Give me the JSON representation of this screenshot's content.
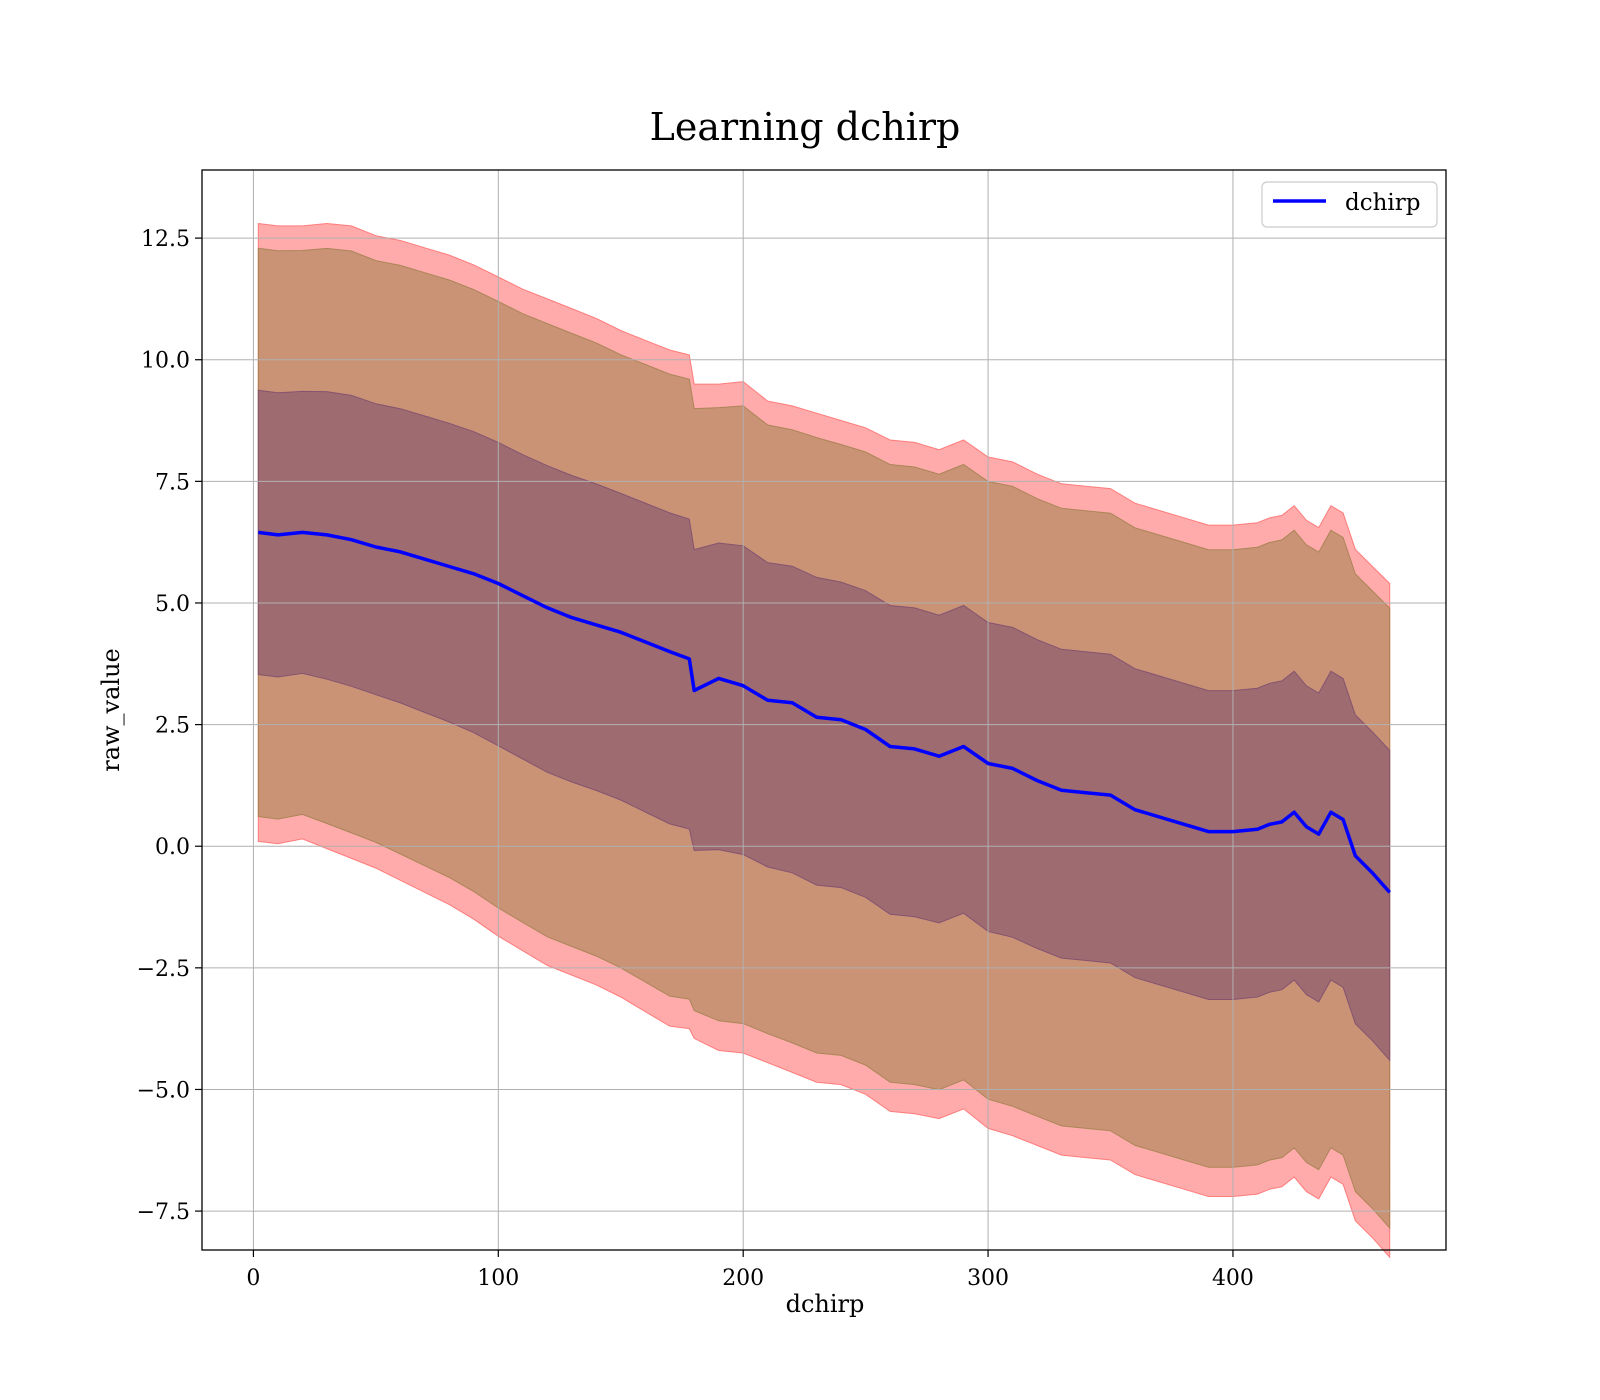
{
  "chart_data": {
    "type": "line",
    "title": "Learning dchirp",
    "xlabel": "dchirp",
    "ylabel": "raw_value",
    "xlim": [
      -21,
      487
    ],
    "ylim": [
      -8.3,
      13.9
    ],
    "xticks": [
      0,
      100,
      200,
      300,
      400
    ],
    "xtick_labels": [
      "0",
      "100",
      "200",
      "300",
      "400"
    ],
    "yticks": [
      -7.5,
      -5.0,
      -2.5,
      0.0,
      2.5,
      5.0,
      7.5,
      10.0,
      12.5
    ],
    "ytick_labels": [
      "−7.5",
      "−5.0",
      "−2.5",
      "0.0",
      "2.5",
      "5.0",
      "7.5",
      "10.0",
      "12.5"
    ],
    "grid": true,
    "legend_position": "top-right",
    "legend": [
      "dchirp"
    ],
    "colors": {
      "line": "#0000ff",
      "band_outer": "#ff6666",
      "band_middle": "#9e7f4a",
      "band_inner": "#7a4a6e",
      "grid": "#b0b0b0"
    },
    "x": [
      2,
      10,
      20,
      30,
      40,
      50,
      60,
      70,
      80,
      90,
      100,
      110,
      120,
      130,
      140,
      150,
      160,
      170,
      178,
      180,
      190,
      200,
      210,
      220,
      230,
      240,
      250,
      260,
      270,
      280,
      290,
      300,
      310,
      320,
      330,
      340,
      350,
      360,
      370,
      380,
      390,
      400,
      410,
      415,
      420,
      425,
      430,
      435,
      440,
      445,
      450,
      457,
      464
    ],
    "series": [
      {
        "name": "dchirp",
        "values": [
          6.45,
          6.4,
          6.45,
          6.4,
          6.3,
          6.15,
          6.05,
          5.9,
          5.75,
          5.6,
          5.4,
          5.15,
          4.9,
          4.7,
          4.55,
          4.4,
          4.2,
          4.0,
          3.85,
          3.2,
          3.45,
          3.3,
          3.0,
          2.95,
          2.65,
          2.6,
          2.4,
          2.05,
          2.0,
          1.85,
          2.05,
          1.7,
          1.6,
          1.35,
          1.15,
          1.1,
          1.05,
          0.75,
          0.6,
          0.45,
          0.3,
          0.3,
          0.35,
          0.45,
          0.5,
          0.7,
          0.4,
          0.25,
          0.7,
          0.55,
          -0.2,
          -0.55,
          -0.95
        ]
      }
    ],
    "bands": [
      {
        "name": "outer",
        "lower": [
          0.1,
          0.05,
          0.15,
          -0.05,
          -0.25,
          -0.45,
          -0.7,
          -0.95,
          -1.2,
          -1.5,
          -1.85,
          -2.15,
          -2.45,
          -2.65,
          -2.85,
          -3.1,
          -3.4,
          -3.7,
          -3.75,
          -3.95,
          -4.2,
          -4.25,
          -4.45,
          -4.65,
          -4.85,
          -4.9,
          -5.1,
          -5.45,
          -5.5,
          -5.6,
          -5.4,
          -5.8,
          -5.95,
          -6.15,
          -6.35,
          -6.4,
          -6.45,
          -6.75,
          -6.9,
          -7.05,
          -7.2,
          -7.2,
          -7.15,
          -7.05,
          -7.0,
          -6.8,
          -7.1,
          -7.25,
          -6.8,
          -6.95,
          -7.7,
          -8.05,
          -8.45
        ]
      },
      {
        "name": "outer",
        "upper": [
          12.8,
          12.75,
          12.75,
          12.8,
          12.75,
          12.55,
          12.45,
          12.3,
          12.15,
          11.95,
          11.7,
          11.45,
          11.25,
          11.05,
          10.85,
          10.6,
          10.4,
          10.2,
          10.1,
          9.5,
          9.5,
          9.55,
          9.15,
          9.05,
          8.9,
          8.75,
          8.6,
          8.35,
          8.3,
          8.15,
          8.35,
          8.0,
          7.9,
          7.65,
          7.45,
          7.4,
          7.35,
          7.05,
          6.9,
          6.75,
          6.6,
          6.6,
          6.65,
          6.75,
          6.8,
          7.0,
          6.7,
          6.55,
          7.0,
          6.85,
          6.1,
          5.75,
          5.4
        ]
      }
    ]
  }
}
